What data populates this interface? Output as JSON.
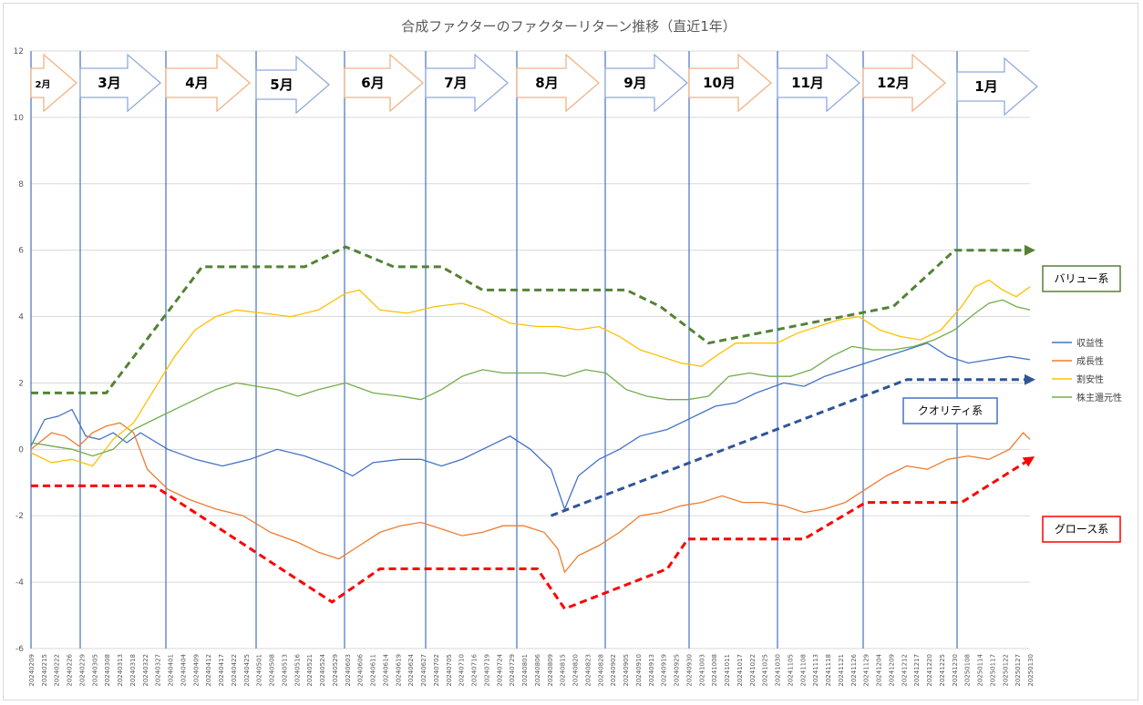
{
  "chart_data": {
    "type": "line",
    "title": "合成ファクターのファクターリターン推移（直近1年）",
    "ylim": [
      -6,
      12
    ],
    "yticks": [
      -6,
      -4,
      -2,
      0,
      2,
      4,
      6,
      8,
      10,
      12
    ],
    "grid": true,
    "legend": "right",
    "x_tick_labels": [
      "20240209",
      "20240215",
      "20240222",
      "20240226",
      "20240229",
      "20240305",
      "20240308",
      "20240313",
      "20240318",
      "20240322",
      "20240327",
      "20240401",
      "20240404",
      "20240409",
      "20240412",
      "20240417",
      "20240422",
      "20240425",
      "20240501",
      "20240508",
      "20240513",
      "20240516",
      "20240521",
      "20240524",
      "20240529",
      "20240603",
      "20240606",
      "20240611",
      "20240614",
      "20240619",
      "20240624",
      "20240627",
      "20240702",
      "20240705",
      "20240710",
      "20240716",
      "20240719",
      "20240724",
      "20240729",
      "20240801",
      "20240806",
      "20240809",
      "20240815",
      "20240820",
      "20240823",
      "20240828",
      "20240902",
      "20240905",
      "20240910",
      "20240913",
      "20240919",
      "20240925",
      "20240930",
      "20241003",
      "20241008",
      "20241011",
      "20241017",
      "20241022",
      "20241025",
      "20241030",
      "20241105",
      "20241108",
      "20241113",
      "20241118",
      "20241121",
      "20241126",
      "20241129",
      "20241204",
      "20241209",
      "20241212",
      "20241217",
      "20241220",
      "20241225",
      "20241230",
      "20250108",
      "20250114",
      "20250117",
      "20250122",
      "20250127",
      "20250130"
    ],
    "months": [
      "2月",
      "3月",
      "4月",
      "5月",
      "6月",
      "7月",
      "8月",
      "9月",
      "10月",
      "11月",
      "12月",
      "1月"
    ],
    "series": [
      {
        "name": "収益性",
        "color": "#4472C4",
        "points": [
          [
            0,
            0.1
          ],
          [
            2,
            0.9
          ],
          [
            4,
            1.0
          ],
          [
            6,
            1.2
          ],
          [
            8,
            0.4
          ],
          [
            10,
            0.3
          ],
          [
            12,
            0.5
          ],
          [
            14,
            0.2
          ],
          [
            16,
            0.5
          ],
          [
            20,
            0.0
          ],
          [
            24,
            -0.3
          ],
          [
            28,
            -0.5
          ],
          [
            32,
            -0.3
          ],
          [
            36,
            0.0
          ],
          [
            40,
            -0.2
          ],
          [
            44,
            -0.5
          ],
          [
            47,
            -0.8
          ],
          [
            50,
            -0.4
          ],
          [
            54,
            -0.3
          ],
          [
            57,
            -0.3
          ],
          [
            60,
            -0.5
          ],
          [
            63,
            -0.3
          ],
          [
            66,
            0.0
          ],
          [
            70,
            0.4
          ],
          [
            73,
            0.0
          ],
          [
            76,
            -0.6
          ],
          [
            78,
            -1.8
          ],
          [
            80,
            -0.8
          ],
          [
            83,
            -0.3
          ],
          [
            86,
            0.0
          ],
          [
            89,
            0.4
          ],
          [
            93,
            0.6
          ],
          [
            97,
            1.0
          ],
          [
            100,
            1.3
          ],
          [
            103,
            1.4
          ],
          [
            106,
            1.7
          ],
          [
            110,
            2.0
          ],
          [
            113,
            1.9
          ],
          [
            116,
            2.2
          ],
          [
            119,
            2.4
          ],
          [
            122,
            2.6
          ],
          [
            125,
            2.8
          ],
          [
            128,
            3.0
          ],
          [
            131,
            3.2
          ],
          [
            134,
            2.8
          ],
          [
            137,
            2.6
          ],
          [
            140,
            2.7
          ],
          [
            143,
            2.8
          ],
          [
            146,
            2.7
          ]
        ]
      },
      {
        "name": "成長性",
        "color": "#ED7D31",
        "points": [
          [
            0,
            0.0
          ],
          [
            3,
            0.5
          ],
          [
            5,
            0.4
          ],
          [
            7,
            0.1
          ],
          [
            9,
            0.5
          ],
          [
            11,
            0.7
          ],
          [
            13,
            0.8
          ],
          [
            15,
            0.5
          ],
          [
            17,
            -0.6
          ],
          [
            20,
            -1.2
          ],
          [
            23,
            -1.5
          ],
          [
            27,
            -1.8
          ],
          [
            31,
            -2.0
          ],
          [
            35,
            -2.5
          ],
          [
            39,
            -2.8
          ],
          [
            42,
            -3.1
          ],
          [
            45,
            -3.3
          ],
          [
            48,
            -2.9
          ],
          [
            51,
            -2.5
          ],
          [
            54,
            -2.3
          ],
          [
            57,
            -2.2
          ],
          [
            60,
            -2.4
          ],
          [
            63,
            -2.6
          ],
          [
            66,
            -2.5
          ],
          [
            69,
            -2.3
          ],
          [
            72,
            -2.3
          ],
          [
            75,
            -2.5
          ],
          [
            77,
            -3.0
          ],
          [
            78,
            -3.7
          ],
          [
            80,
            -3.2
          ],
          [
            83,
            -2.9
          ],
          [
            86,
            -2.5
          ],
          [
            89,
            -2.0
          ],
          [
            92,
            -1.9
          ],
          [
            95,
            -1.7
          ],
          [
            98,
            -1.6
          ],
          [
            101,
            -1.4
          ],
          [
            104,
            -1.6
          ],
          [
            107,
            -1.6
          ],
          [
            110,
            -1.7
          ],
          [
            113,
            -1.9
          ],
          [
            116,
            -1.8
          ],
          [
            119,
            -1.6
          ],
          [
            122,
            -1.2
          ],
          [
            125,
            -0.8
          ],
          [
            128,
            -0.5
          ],
          [
            131,
            -0.6
          ],
          [
            134,
            -0.3
          ],
          [
            137,
            -0.2
          ],
          [
            140,
            -0.3
          ],
          [
            143,
            0.0
          ],
          [
            145,
            0.5
          ],
          [
            146,
            0.3
          ]
        ]
      },
      {
        "name": "割安性",
        "color": "#FFC000",
        "points": [
          [
            0,
            -0.1
          ],
          [
            3,
            -0.4
          ],
          [
            6,
            -0.3
          ],
          [
            9,
            -0.5
          ],
          [
            12,
            0.3
          ],
          [
            15,
            0.8
          ],
          [
            18,
            1.8
          ],
          [
            21,
            2.8
          ],
          [
            24,
            3.6
          ],
          [
            27,
            4.0
          ],
          [
            30,
            4.2
          ],
          [
            34,
            4.1
          ],
          [
            38,
            4.0
          ],
          [
            42,
            4.2
          ],
          [
            46,
            4.7
          ],
          [
            48,
            4.8
          ],
          [
            51,
            4.2
          ],
          [
            55,
            4.1
          ],
          [
            59,
            4.3
          ],
          [
            63,
            4.4
          ],
          [
            66,
            4.2
          ],
          [
            70,
            3.8
          ],
          [
            74,
            3.7
          ],
          [
            77,
            3.7
          ],
          [
            80,
            3.6
          ],
          [
            83,
            3.7
          ],
          [
            86,
            3.4
          ],
          [
            89,
            3.0
          ],
          [
            92,
            2.8
          ],
          [
            95,
            2.6
          ],
          [
            98,
            2.5
          ],
          [
            100,
            2.8
          ],
          [
            103,
            3.2
          ],
          [
            106,
            3.2
          ],
          [
            109,
            3.2
          ],
          [
            112,
            3.5
          ],
          [
            115,
            3.7
          ],
          [
            118,
            3.9
          ],
          [
            121,
            4.0
          ],
          [
            124,
            3.6
          ],
          [
            127,
            3.4
          ],
          [
            130,
            3.3
          ],
          [
            133,
            3.6
          ],
          [
            136,
            4.3
          ],
          [
            138,
            4.9
          ],
          [
            140,
            5.1
          ],
          [
            142,
            4.8
          ],
          [
            144,
            4.6
          ],
          [
            146,
            4.9
          ]
        ]
      },
      {
        "name": "株主還元性",
        "color": "#70AD47",
        "points": [
          [
            0,
            0.2
          ],
          [
            3,
            0.1
          ],
          [
            6,
            0.0
          ],
          [
            9,
            -0.2
          ],
          [
            12,
            0.0
          ],
          [
            15,
            0.6
          ],
          [
            18,
            0.9
          ],
          [
            21,
            1.2
          ],
          [
            24,
            1.5
          ],
          [
            27,
            1.8
          ],
          [
            30,
            2.0
          ],
          [
            33,
            1.9
          ],
          [
            36,
            1.8
          ],
          [
            39,
            1.6
          ],
          [
            42,
            1.8
          ],
          [
            46,
            2.0
          ],
          [
            50,
            1.7
          ],
          [
            54,
            1.6
          ],
          [
            57,
            1.5
          ],
          [
            60,
            1.8
          ],
          [
            63,
            2.2
          ],
          [
            66,
            2.4
          ],
          [
            69,
            2.3
          ],
          [
            72,
            2.3
          ],
          [
            75,
            2.3
          ],
          [
            78,
            2.2
          ],
          [
            81,
            2.4
          ],
          [
            84,
            2.3
          ],
          [
            87,
            1.8
          ],
          [
            90,
            1.6
          ],
          [
            93,
            1.5
          ],
          [
            96,
            1.5
          ],
          [
            99,
            1.6
          ],
          [
            102,
            2.2
          ],
          [
            105,
            2.3
          ],
          [
            108,
            2.2
          ],
          [
            111,
            2.2
          ],
          [
            114,
            2.4
          ],
          [
            117,
            2.8
          ],
          [
            120,
            3.1
          ],
          [
            123,
            3.0
          ],
          [
            126,
            3.0
          ],
          [
            129,
            3.1
          ],
          [
            132,
            3.3
          ],
          [
            135,
            3.6
          ],
          [
            138,
            4.1
          ],
          [
            140,
            4.4
          ],
          [
            142,
            4.5
          ],
          [
            144,
            4.3
          ],
          [
            146,
            4.2
          ]
        ]
      }
    ],
    "annotations": {
      "value_label": "バリュー系",
      "quality_label": "クオリティ系",
      "growth_label": "グロース系",
      "value_trend": [
        [
          0,
          1.7
        ],
        [
          11,
          1.7
        ],
        [
          25,
          5.5
        ],
        [
          40,
          5.5
        ],
        [
          46,
          6.1
        ],
        [
          53,
          5.5
        ],
        [
          60,
          5.5
        ],
        [
          66,
          4.8
        ],
        [
          79,
          4.8
        ],
        [
          87,
          4.8
        ],
        [
          92,
          4.3
        ],
        [
          99,
          3.2
        ],
        [
          126,
          4.3
        ],
        [
          135,
          6.0
        ],
        [
          146,
          6.0
        ]
      ],
      "quality_trend": [
        [
          76,
          -2.0
        ],
        [
          128,
          2.1
        ],
        [
          146,
          2.1
        ]
      ],
      "growth_trend": [
        [
          0,
          -1.1
        ],
        [
          18,
          -1.1
        ],
        [
          44,
          -4.6
        ],
        [
          51,
          -3.6
        ],
        [
          57,
          -3.6
        ],
        [
          68,
          -3.6
        ],
        [
          74,
          -3.6
        ],
        [
          78,
          -4.8
        ],
        [
          93,
          -3.6
        ],
        [
          96,
          -2.7
        ],
        [
          106,
          -2.7
        ],
        [
          113,
          -2.7
        ],
        [
          122,
          -1.6
        ],
        [
          129,
          -1.6
        ],
        [
          136,
          -1.6
        ],
        [
          146,
          -0.3
        ]
      ]
    }
  }
}
